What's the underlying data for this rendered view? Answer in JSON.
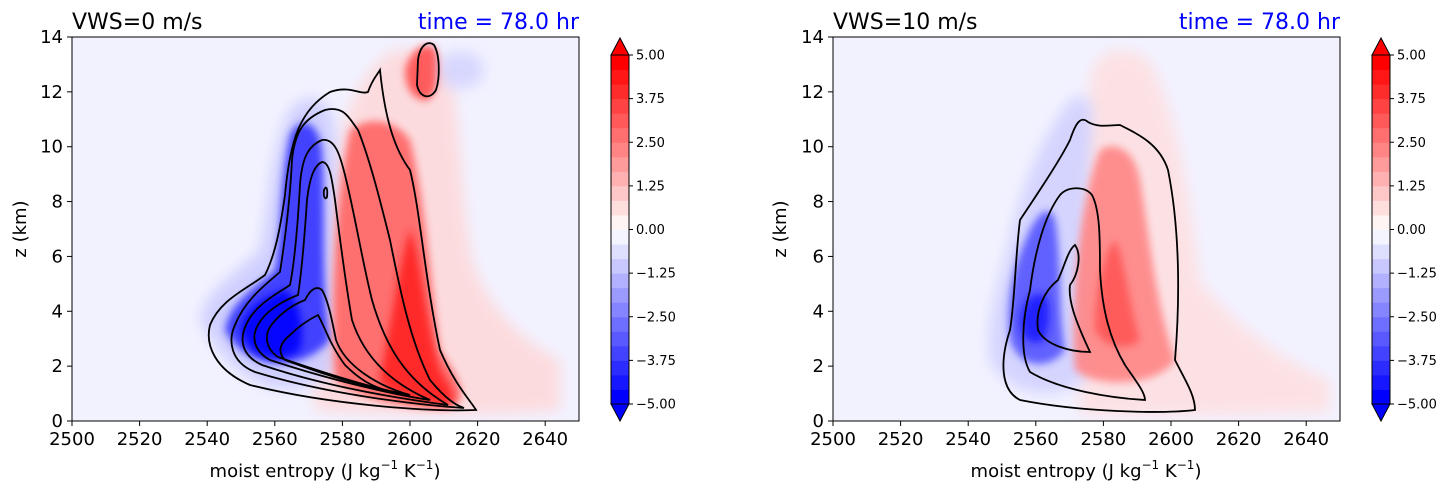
{
  "chart_data": [
    {
      "type": "heatmap",
      "title": "VWS=0 m/s",
      "time_label": "time = 78.0 hr",
      "xlabel": "moist entropy (J kg$^{-1}$ K$^{-1}$)",
      "xlabel_parts": {
        "base": "moist entropy (J kg",
        "sup1": "−1",
        "mid": " K",
        "sup2": "−1",
        "end": ")"
      },
      "ylabel": "z (km)",
      "xlim": [
        2500,
        2650
      ],
      "ylim": [
        0,
        14
      ],
      "xticks": [
        "2500",
        "2520",
        "2540",
        "2560",
        "2580",
        "2600",
        "2620",
        "2640"
      ],
      "yticks": [
        "0",
        "2",
        "4",
        "6",
        "8",
        "10",
        "12",
        "14"
      ],
      "colorbar": {
        "range": [
          -5.0,
          5.0
        ],
        "ticks": [
          "−5.00",
          "−3.75",
          "−2.50",
          "−1.25",
          "0.00",
          "1.25",
          "2.50",
          "3.75",
          "5.00"
        ],
        "extend": "both",
        "colormap": "bwr"
      },
      "filled_features": [
        {
          "sign": "negative",
          "peak": -5.0,
          "center": [
            2558,
            4.0
          ],
          "extent_x": [
            2540,
            2580
          ],
          "extent_z": [
            0.5,
            11
          ]
        },
        {
          "sign": "positive",
          "peak": 5.0,
          "center": [
            2602,
            3.0
          ],
          "extent_x": [
            2575,
            2625
          ],
          "extent_z": [
            0.3,
            11
          ]
        },
        {
          "sign": "positive",
          "peak": 3.5,
          "center": [
            2604,
            12.5
          ],
          "extent_x": [
            2595,
            2612
          ],
          "extent_z": [
            11,
            14
          ]
        }
      ],
      "contour_count": 7,
      "grid": false
    },
    {
      "type": "heatmap",
      "title": "VWS=10 m/s",
      "time_label": "time = 78.0 hr",
      "xlabel": "moist entropy (J kg$^{-1}$ K$^{-1}$)",
      "xlabel_parts": {
        "base": "moist entropy (J kg",
        "sup1": "−1",
        "mid": " K",
        "sup2": "−1",
        "end": ")"
      },
      "ylabel": "z (km)",
      "xlim": [
        2500,
        2650
      ],
      "ylim": [
        0,
        14
      ],
      "xticks": [
        "2500",
        "2520",
        "2540",
        "2560",
        "2580",
        "2600",
        "2620",
        "2640"
      ],
      "yticks": [
        "0",
        "2",
        "4",
        "6",
        "8",
        "10",
        "12",
        "14"
      ],
      "colorbar": {
        "range": [
          -5.0,
          5.0
        ],
        "ticks": [
          "−5.00",
          "−3.75",
          "−2.50",
          "−1.25",
          "0.00",
          "1.25",
          "2.50",
          "3.75",
          "5.00"
        ],
        "extend": "both",
        "colormap": "bwr"
      },
      "filled_features": [
        {
          "sign": "negative",
          "peak": -4.5,
          "center": [
            2559,
            4.0
          ],
          "extent_x": [
            2548,
            2575
          ],
          "extent_z": [
            1,
            11
          ]
        },
        {
          "sign": "positive",
          "peak": 2.5,
          "center": [
            2585,
            4.0
          ],
          "extent_x": [
            2570,
            2610
          ],
          "extent_z": [
            0.5,
            12
          ]
        }
      ],
      "contour_count": 3,
      "grid": false
    }
  ],
  "colors": {
    "title": "#000000",
    "time_label": "#0000ff",
    "background": "#f2f2ff",
    "contour": "#000000"
  }
}
